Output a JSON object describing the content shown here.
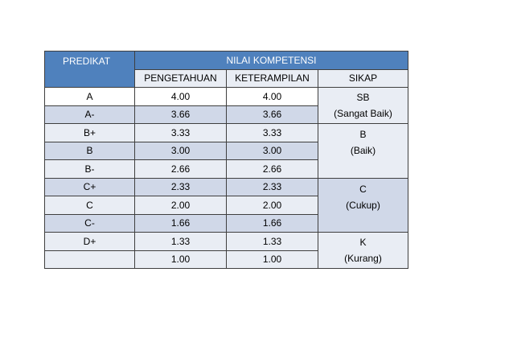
{
  "header": {
    "predikat": "PREDIKAT",
    "nilai_kompetensi": "NILAI KOMPETENSI",
    "pengetahuan": "PENGETAHUAN",
    "keterampilan": "KETERAMPILAN",
    "sikap": "SIKAP"
  },
  "rows": [
    {
      "predikat": "A",
      "pengetahuan": "4.00",
      "keterampilan": "4.00"
    },
    {
      "predikat": "A-",
      "pengetahuan": "3.66",
      "keterampilan": "3.66"
    },
    {
      "predikat": "B+",
      "pengetahuan": "3.33",
      "keterampilan": "3.33"
    },
    {
      "predikat": "B",
      "pengetahuan": "3.00",
      "keterampilan": "3.00"
    },
    {
      "predikat": "B-",
      "pengetahuan": "2.66",
      "keterampilan": "2.66"
    },
    {
      "predikat": "C+",
      "pengetahuan": "2.33",
      "keterampilan": "2.33"
    },
    {
      "predikat": "C",
      "pengetahuan": "2.00",
      "keterampilan": "2.00"
    },
    {
      "predikat": "C-",
      "pengetahuan": "1.66",
      "keterampilan": "1.66"
    },
    {
      "predikat": "D+",
      "pengetahuan": "1.33",
      "keterampilan": "1.33"
    },
    {
      "predikat": "",
      "pengetahuan": "1.00",
      "keterampilan": "1.00"
    }
  ],
  "sikap": [
    {
      "code": "SB",
      "label": "(Sangat Baik)"
    },
    {
      "code": "B",
      "label": "(Baik)"
    },
    {
      "code": "C",
      "label": "(Cukup)"
    },
    {
      "code": "K",
      "label": "(Kurang)"
    }
  ]
}
